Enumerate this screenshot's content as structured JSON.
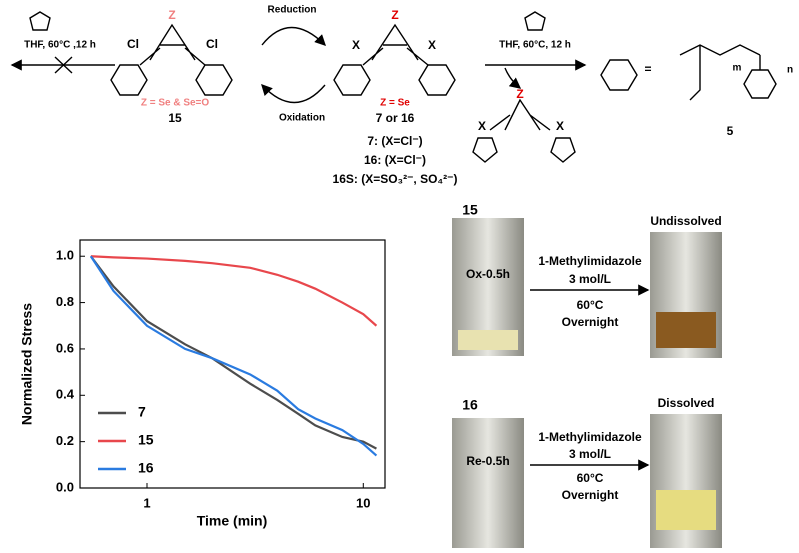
{
  "scheme": {
    "left_conditions": "THF, 60°C ,12 h",
    "reduction": "Reduction",
    "oxidation": "Oxidation",
    "left_z": "Z",
    "left_counterions": [
      "Cl",
      "Cl"
    ],
    "left_z_def": "Z = Se & Se=O",
    "left_label": "15",
    "mid_z": "Z",
    "mid_counterions": [
      "X",
      "X"
    ],
    "mid_z_def": "Z = Se",
    "mid_label": "7 or 16",
    "mid_notes": [
      "7: (X=Cl⁻)",
      "16: (X=Cl⁻)",
      "16S: (X=SO₃²⁻, SO₄²⁻)"
    ],
    "right_conditions": "THF, 60°C, 12 h",
    "product_z": "Z",
    "product_counterions": [
      "X",
      "X"
    ],
    "equals": "=",
    "polymer_m": "m",
    "polymer_n": "n",
    "polymer_label": "5"
  },
  "chart_data": {
    "type": "line",
    "x_label": "Time (min)",
    "y_label": "Normalized Stress",
    "x": [
      0.55,
      0.7,
      1,
      1.5,
      2,
      3,
      4,
      5,
      6,
      8,
      10,
      11.5
    ],
    "series": [
      {
        "name": "7",
        "color": "#4d4d4d",
        "values": [
          1.0,
          0.87,
          0.72,
          0.62,
          0.56,
          0.45,
          0.38,
          0.32,
          0.27,
          0.22,
          0.2,
          0.17
        ]
      },
      {
        "name": "15",
        "color": "#e8474c",
        "values": [
          1.0,
          0.995,
          0.99,
          0.98,
          0.97,
          0.95,
          0.92,
          0.89,
          0.86,
          0.8,
          0.75,
          0.7
        ]
      },
      {
        "name": "16",
        "color": "#2a7be0",
        "values": [
          1.0,
          0.85,
          0.7,
          0.6,
          0.56,
          0.49,
          0.42,
          0.34,
          0.3,
          0.25,
          0.19,
          0.14
        ]
      }
    ],
    "xlim": [
      0.49,
      12.6
    ],
    "x_log": true,
    "xticks": [
      1,
      10
    ],
    "ylim": [
      0,
      1.07
    ],
    "yticks": [
      {
        "value": 0,
        "label": "0.0"
      },
      {
        "value": 0.2,
        "label": "0.2"
      },
      {
        "value": 0.4,
        "label": "0.4"
      },
      {
        "value": 0.6,
        "label": "0.6"
      },
      {
        "value": 0.8,
        "label": "0.8"
      },
      {
        "value": 1.0,
        "label": "1.0"
      }
    ],
    "legend": "lower left"
  },
  "photos": [
    {
      "sample": "15",
      "vial_label": "Ox-0.5h",
      "reagent": "1-Methylimidazole",
      "concentration": "3 mol/L",
      "temperature": "60°C",
      "time": "Overnight",
      "result": "Undissolved"
    },
    {
      "sample": "16",
      "vial_label": "Re-0.5h",
      "reagent": "1-Methylimidazole",
      "concentration": "3 mol/L",
      "temperature": "60°C",
      "time": "Overnight",
      "result": "Dissolved"
    }
  ]
}
